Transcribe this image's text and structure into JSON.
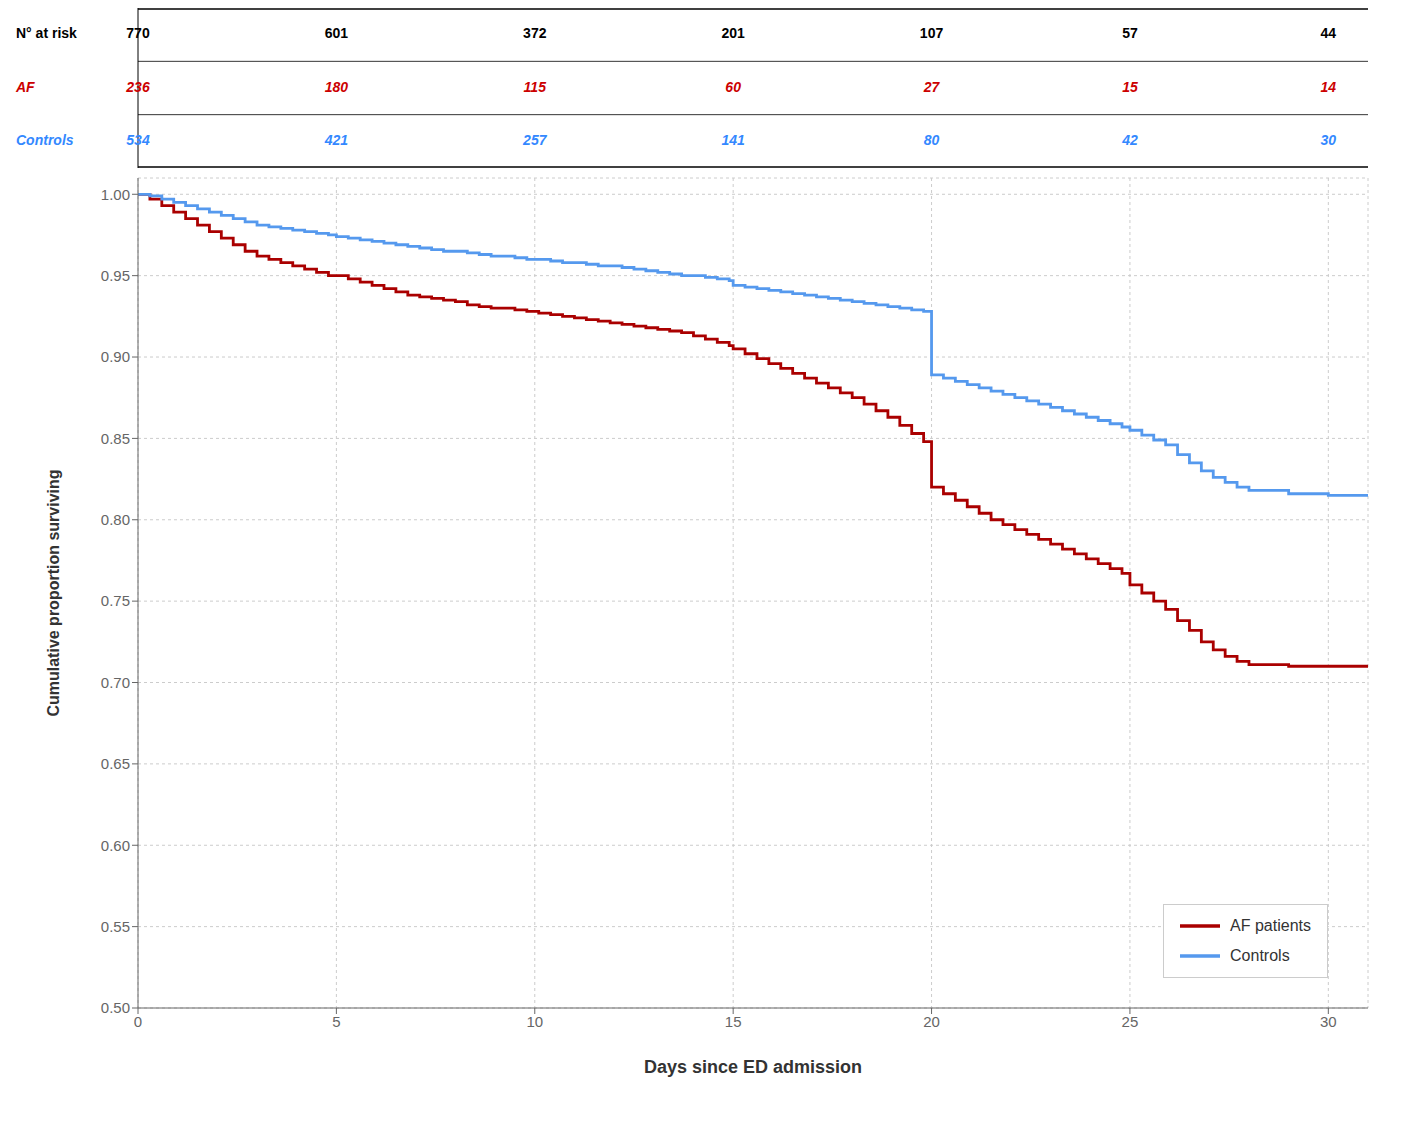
{
  "chart_data": {
    "type": "step",
    "xlabel": "Days since ED admission",
    "ylabel": "Cumulative proportion surviving",
    "xlim": [
      0,
      31
    ],
    "ylim": [
      0.5,
      1.01
    ],
    "xticks": [
      0,
      5,
      10,
      15,
      20,
      25,
      30
    ],
    "yticks": [
      {
        "value": 0.5,
        "label": "0.50"
      },
      0.55,
      {
        "value": 0.6,
        "label": "0.60"
      },
      0.65,
      {
        "value": 0.7,
        "label": "0.70"
      },
      0.75,
      {
        "value": 0.8,
        "label": "0.80"
      },
      0.85,
      {
        "value": 0.9,
        "label": "0.90"
      },
      0.95,
      {
        "value": 1.0,
        "label": "1.00"
      }
    ],
    "grid": true,
    "legend": "lower right",
    "x": [
      0,
      0.3,
      0.6,
      0.9,
      1.2,
      1.5,
      1.8,
      2.1,
      2.4,
      2.7,
      3.0,
      3.3,
      3.6,
      3.9,
      4.2,
      4.5,
      4.8,
      5.0,
      5.3,
      5.6,
      5.9,
      6.2,
      6.5,
      6.8,
      7.1,
      7.4,
      7.7,
      8.0,
      8.3,
      8.6,
      8.9,
      9.2,
      9.5,
      9.8,
      10.1,
      10.4,
      10.7,
      11.0,
      11.3,
      11.6,
      11.9,
      12.2,
      12.5,
      12.8,
      13.1,
      13.4,
      13.7,
      14.0,
      14.3,
      14.6,
      14.9,
      15.0,
      15.3,
      15.6,
      15.9,
      16.2,
      16.5,
      16.8,
      17.1,
      17.4,
      17.7,
      18.0,
      18.3,
      18.6,
      18.9,
      19.2,
      19.5,
      19.8,
      20.0,
      20.3,
      20.6,
      20.9,
      21.2,
      21.5,
      21.8,
      22.1,
      22.4,
      22.7,
      23.0,
      23.3,
      23.6,
      23.9,
      24.2,
      24.5,
      24.8,
      25.0,
      25.3,
      25.6,
      25.9,
      26.2,
      26.5,
      26.8,
      27.1,
      27.4,
      27.7,
      28.0,
      29.0,
      30.0,
      31.0
    ],
    "series": [
      {
        "name": "AF patients",
        "color": "#aa0000",
        "values": [
          1.0,
          0.997,
          0.993,
          0.989,
          0.985,
          0.981,
          0.977,
          0.973,
          0.969,
          0.965,
          0.962,
          0.96,
          0.958,
          0.956,
          0.954,
          0.952,
          0.95,
          0.95,
          0.948,
          0.946,
          0.944,
          0.942,
          0.94,
          0.938,
          0.937,
          0.936,
          0.935,
          0.934,
          0.932,
          0.931,
          0.93,
          0.93,
          0.929,
          0.928,
          0.927,
          0.926,
          0.925,
          0.924,
          0.923,
          0.922,
          0.921,
          0.92,
          0.919,
          0.918,
          0.917,
          0.916,
          0.915,
          0.913,
          0.911,
          0.909,
          0.907,
          0.905,
          0.902,
          0.899,
          0.896,
          0.893,
          0.89,
          0.887,
          0.884,
          0.881,
          0.878,
          0.875,
          0.871,
          0.867,
          0.863,
          0.858,
          0.853,
          0.848,
          0.82,
          0.816,
          0.812,
          0.808,
          0.804,
          0.8,
          0.797,
          0.794,
          0.791,
          0.788,
          0.785,
          0.782,
          0.779,
          0.776,
          0.773,
          0.77,
          0.767,
          0.76,
          0.755,
          0.75,
          0.745,
          0.738,
          0.732,
          0.725,
          0.72,
          0.716,
          0.713,
          0.711,
          0.71,
          0.71,
          0.71
        ]
      },
      {
        "name": "Controls",
        "color": "#5599ee",
        "values": [
          1.0,
          0.999,
          0.997,
          0.995,
          0.993,
          0.991,
          0.989,
          0.987,
          0.985,
          0.983,
          0.981,
          0.98,
          0.979,
          0.978,
          0.977,
          0.976,
          0.975,
          0.974,
          0.973,
          0.972,
          0.971,
          0.97,
          0.969,
          0.968,
          0.967,
          0.966,
          0.965,
          0.965,
          0.964,
          0.963,
          0.962,
          0.962,
          0.961,
          0.96,
          0.96,
          0.959,
          0.958,
          0.958,
          0.957,
          0.956,
          0.956,
          0.955,
          0.954,
          0.953,
          0.952,
          0.951,
          0.95,
          0.95,
          0.949,
          0.948,
          0.947,
          0.944,
          0.943,
          0.942,
          0.941,
          0.94,
          0.939,
          0.938,
          0.937,
          0.936,
          0.935,
          0.934,
          0.933,
          0.932,
          0.931,
          0.93,
          0.929,
          0.928,
          0.889,
          0.887,
          0.885,
          0.883,
          0.881,
          0.879,
          0.877,
          0.875,
          0.873,
          0.871,
          0.869,
          0.867,
          0.865,
          0.863,
          0.861,
          0.859,
          0.857,
          0.855,
          0.852,
          0.849,
          0.846,
          0.84,
          0.835,
          0.83,
          0.826,
          0.823,
          0.82,
          0.818,
          0.816,
          0.815,
          0.815
        ]
      }
    ],
    "risk_table": {
      "x": [
        0,
        5,
        10,
        15,
        20,
        25,
        30
      ],
      "rows": [
        {
          "name": "N° at risk",
          "color": "#000000",
          "values": [
            770,
            601,
            372,
            201,
            107,
            57,
            44
          ]
        },
        {
          "name": "AF",
          "color": "#cc0000",
          "values": [
            236,
            180,
            115,
            60,
            27,
            15,
            14
          ]
        },
        {
          "name": "Controls",
          "color": "#3388ff",
          "values": [
            534,
            421,
            257,
            141,
            80,
            42,
            30
          ]
        }
      ]
    }
  }
}
